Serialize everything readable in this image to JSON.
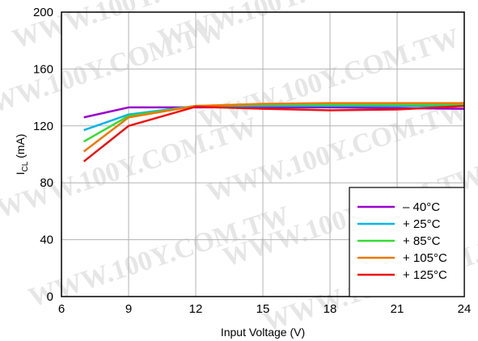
{
  "watermark": "WWW.100Y.COM.TW",
  "chart_data": {
    "type": "line",
    "xlabel": "Input Voltage (V)",
    "ylabel_main": "I",
    "ylabel_sub": "CL",
    "ylabel_unit": " (mA)",
    "xlim": [
      6,
      24
    ],
    "ylim": [
      0,
      200
    ],
    "xticks": [
      6,
      9,
      12,
      15,
      18,
      21,
      24
    ],
    "yticks": [
      0,
      40,
      80,
      120,
      160,
      200
    ],
    "grid": true,
    "legend_position": "bottom-right",
    "x": [
      7,
      9,
      12,
      15,
      18,
      21,
      24
    ],
    "series": [
      {
        "name": "– 40°C",
        "color": "#9900cc",
        "values": [
          126,
          133,
          133,
          133,
          133,
          132.5,
          132
        ]
      },
      {
        "name": "+ 25°C",
        "color": "#00b4e6",
        "values": [
          117,
          128,
          134,
          134,
          134,
          134,
          134
        ]
      },
      {
        "name": "+ 85°C",
        "color": "#33dd33",
        "values": [
          109,
          127,
          134,
          135,
          135,
          135,
          135
        ]
      },
      {
        "name": "+ 105°C",
        "color": "#ee7700",
        "values": [
          102,
          126,
          134,
          135.5,
          136,
          136,
          136
        ]
      },
      {
        "name": "+ 125°C",
        "color": "#ee1111",
        "values": [
          95,
          120,
          133.5,
          132,
          131,
          131.5,
          134
        ]
      }
    ]
  }
}
